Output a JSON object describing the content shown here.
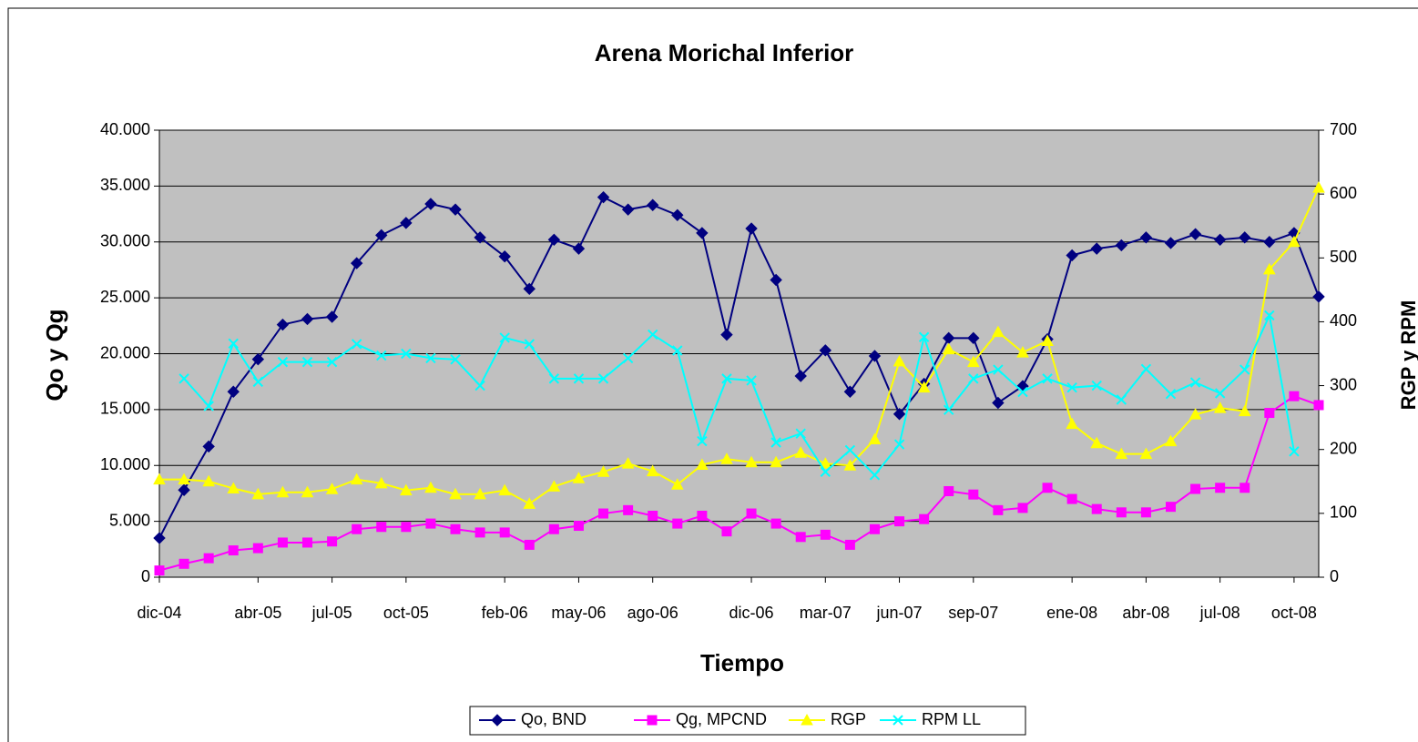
{
  "chart_data": {
    "type": "line",
    "title": "Arena Morichal Inferior",
    "x_label": "Tiempo",
    "y_label": "Qo y Qg",
    "y2_label": "RGP y RPM",
    "categories": [
      "dic-04",
      null,
      null,
      null,
      "abr-05",
      null,
      null,
      "jul-05",
      null,
      null,
      "oct-05",
      null,
      null,
      null,
      "feb-06",
      null,
      null,
      "may-06",
      null,
      null,
      "ago-06",
      null,
      null,
      null,
      "dic-06",
      null,
      null,
      "mar-07",
      null,
      null,
      "jun-07",
      null,
      null,
      "sep-07",
      null,
      null,
      null,
      "ene-08",
      null,
      null,
      "abr-08",
      null,
      null,
      "jul-08",
      null,
      null,
      "oct-08",
      null
    ],
    "series": [
      {
        "name": "Qo, BND",
        "color": "#000080",
        "marker": "diamond",
        "values": [
          3500,
          7800,
          11700,
          16600,
          19500,
          22600,
          23100,
          23300,
          28100,
          30600,
          31700,
          33400,
          32900,
          30400,
          28700,
          25800,
          30200,
          29400,
          34000,
          32900,
          33300,
          32400,
          30800,
          21700,
          31200,
          26600,
          18000,
          20300,
          16600,
          19800,
          14600,
          17300,
          21400,
          21400,
          15600,
          17100,
          21300,
          28800,
          29400,
          29700,
          30400,
          29900,
          30700,
          30200,
          30400,
          30000,
          30800,
          25100
        ]
      },
      {
        "name": "Qg, MPCND",
        "color": "#ff00ff",
        "marker": "square",
        "values": [
          600,
          1200,
          1700,
          2400,
          2600,
          3100,
          3100,
          3200,
          4300,
          4500,
          4500,
          4800,
          4300,
          4000,
          4000,
          2900,
          4300,
          4600,
          5700,
          6000,
          5500,
          4800,
          5500,
          4100,
          5700,
          4800,
          3600,
          3800,
          2900,
          4300,
          5000,
          5200,
          7700,
          7400,
          6000,
          6200,
          8000,
          7000,
          6100,
          5800,
          5800,
          6300,
          7900,
          8000,
          8000,
          14700,
          16200,
          15400
        ]
      },
      {
        "name": "RGP",
        "color": "#ffff00",
        "marker": "triangle",
        "axis": "y2",
        "values": [
          153,
          153,
          150,
          139,
          130,
          133,
          133,
          138,
          153,
          147,
          136,
          140,
          130,
          130,
          136,
          115,
          142,
          155,
          165,
          178,
          166,
          145,
          176,
          185,
          180,
          180,
          195,
          178,
          175,
          216,
          338,
          297,
          357,
          337,
          384,
          352,
          370,
          240,
          210,
          193,
          193,
          213,
          255,
          265,
          260,
          482,
          525,
          610
        ]
      },
      {
        "name": "RPM LL",
        "color": "#00ffff",
        "marker": "x",
        "axis": "y2",
        "values": [
          null,
          311,
          268,
          366,
          306,
          337,
          337,
          337,
          365,
          347,
          350,
          343,
          341,
          300,
          375,
          365,
          311,
          311,
          311,
          343,
          380,
          355,
          213,
          311,
          308,
          211,
          225,
          165,
          199,
          160,
          208,
          376,
          262,
          311,
          325,
          290,
          311,
          297,
          300,
          278,
          326,
          287,
          305,
          288,
          325,
          410,
          197,
          null
        ]
      }
    ],
    "ylim": [
      0,
      40000
    ],
    "yticks": [
      0,
      {
        "value": 5000,
        "label": "5.000"
      },
      {
        "value": 10000,
        "label": "10.000"
      },
      {
        "value": 15000,
        "label": "15.000"
      },
      {
        "value": 20000,
        "label": "20.000"
      },
      {
        "value": 25000,
        "label": "25.000"
      },
      {
        "value": 30000,
        "label": "30.000"
      },
      {
        "value": 35000,
        "label": "35.000"
      },
      {
        "value": 40000,
        "label": "40.000"
      }
    ],
    "y2lim": [
      0,
      700
    ],
    "y2ticks": [
      0,
      100,
      200,
      300,
      400,
      500,
      600,
      700
    ],
    "grid": true,
    "legend": "bottom",
    "plot_background": "#c0c0c0"
  }
}
